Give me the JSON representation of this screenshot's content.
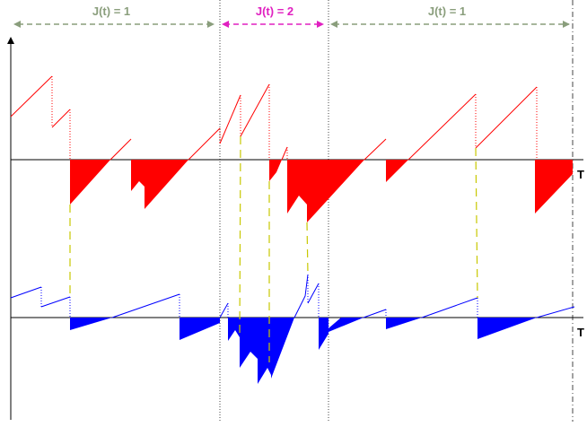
{
  "regions": [
    {
      "label": "J(t) = 1",
      "color": "#8a9e7c"
    },
    {
      "label": "J(t) = 2",
      "color": "#e020c0"
    },
    {
      "label": "J(t) = 1",
      "color": "#8a9e7c"
    }
  ],
  "axis_labels": {
    "upper": "T",
    "lower": "T"
  },
  "colors": {
    "upper_process": "#ff0000",
    "lower_process": "#0000ff",
    "connector": "#c8c800",
    "axis": "#000000",
    "divider": "#444444"
  }
}
